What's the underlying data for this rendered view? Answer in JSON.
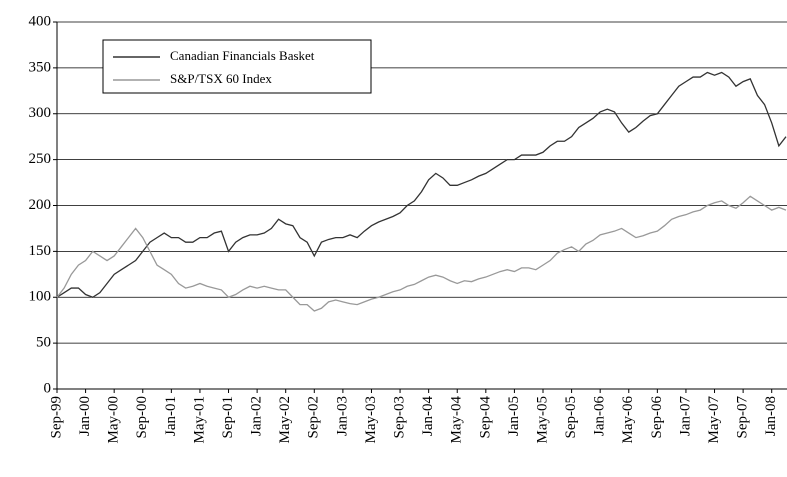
{
  "chart_data": {
    "type": "line",
    "categories": [
      "Sep-99",
      null,
      null,
      null,
      "Jan-00",
      null,
      null,
      null,
      "May-00",
      null,
      null,
      null,
      "Sep-00",
      null,
      null,
      null,
      "Jan-01",
      null,
      null,
      null,
      "May-01",
      null,
      null,
      null,
      "Sep-01",
      null,
      null,
      null,
      "Jan-02",
      null,
      null,
      null,
      "May-02",
      null,
      null,
      null,
      "Sep-02",
      null,
      null,
      null,
      "Jan-03",
      null,
      null,
      null,
      "May-03",
      null,
      null,
      null,
      "Sep-03",
      null,
      null,
      null,
      "Jan-04",
      null,
      null,
      null,
      "May-04",
      null,
      null,
      null,
      "Sep-04",
      null,
      null,
      null,
      "Jan-05",
      null,
      null,
      null,
      "May-05",
      null,
      null,
      null,
      "Sep-05",
      null,
      null,
      null,
      "Jan-06",
      null,
      null,
      null,
      "May-06",
      null,
      null,
      null,
      "Sep-06",
      null,
      null,
      null,
      "Jan-07",
      null,
      null,
      null,
      "May-07",
      null,
      null,
      null,
      "Sep-07",
      null,
      null,
      null,
      "Jan-08",
      null,
      null
    ],
    "series": [
      {
        "name": "Canadian Financials Basket",
        "color": "#333333",
        "values": [
          100,
          105,
          110,
          110,
          103,
          100,
          105,
          115,
          125,
          130,
          135,
          140,
          150,
          160,
          165,
          170,
          165,
          165,
          160,
          160,
          165,
          165,
          170,
          172,
          150,
          160,
          165,
          168,
          168,
          170,
          175,
          185,
          180,
          178,
          165,
          160,
          145,
          160,
          163,
          165,
          165,
          168,
          165,
          172,
          178,
          182,
          185,
          188,
          192,
          200,
          205,
          215,
          228,
          235,
          230,
          222,
          222,
          225,
          228,
          232,
          235,
          240,
          245,
          250,
          250,
          255,
          255,
          255,
          258,
          265,
          270,
          270,
          275,
          285,
          290,
          295,
          302,
          305,
          302,
          290,
          280,
          285,
          292,
          298,
          300,
          310,
          320,
          330,
          335,
          340,
          340,
          345,
          342,
          345,
          340,
          330,
          335,
          338,
          320,
          310,
          290,
          265,
          275
        ]
      },
      {
        "name": "S&P/TSX 60 Index",
        "color": "#999999",
        "values": [
          100,
          110,
          125,
          135,
          140,
          150,
          145,
          140,
          145,
          155,
          165,
          175,
          165,
          150,
          135,
          130,
          125,
          115,
          110,
          112,
          115,
          112,
          110,
          108,
          100,
          103,
          108,
          112,
          110,
          112,
          110,
          108,
          108,
          100,
          92,
          92,
          85,
          88,
          95,
          97,
          95,
          93,
          92,
          95,
          98,
          100,
          103,
          106,
          108,
          112,
          114,
          118,
          122,
          124,
          122,
          118,
          115,
          118,
          117,
          120,
          122,
          125,
          128,
          130,
          128,
          132,
          132,
          130,
          135,
          140,
          148,
          152,
          155,
          150,
          158,
          162,
          168,
          170,
          172,
          175,
          170,
          165,
          167,
          170,
          172,
          178,
          185,
          188,
          190,
          193,
          195,
          200,
          203,
          205,
          200,
          197,
          203,
          210,
          205,
          200,
          195,
          198,
          195
        ]
      }
    ],
    "ylim": [
      0,
      400
    ],
    "yticks": [
      0,
      50,
      100,
      150,
      200,
      250,
      300,
      350,
      400
    ],
    "grid": true,
    "legend": "upper left"
  }
}
